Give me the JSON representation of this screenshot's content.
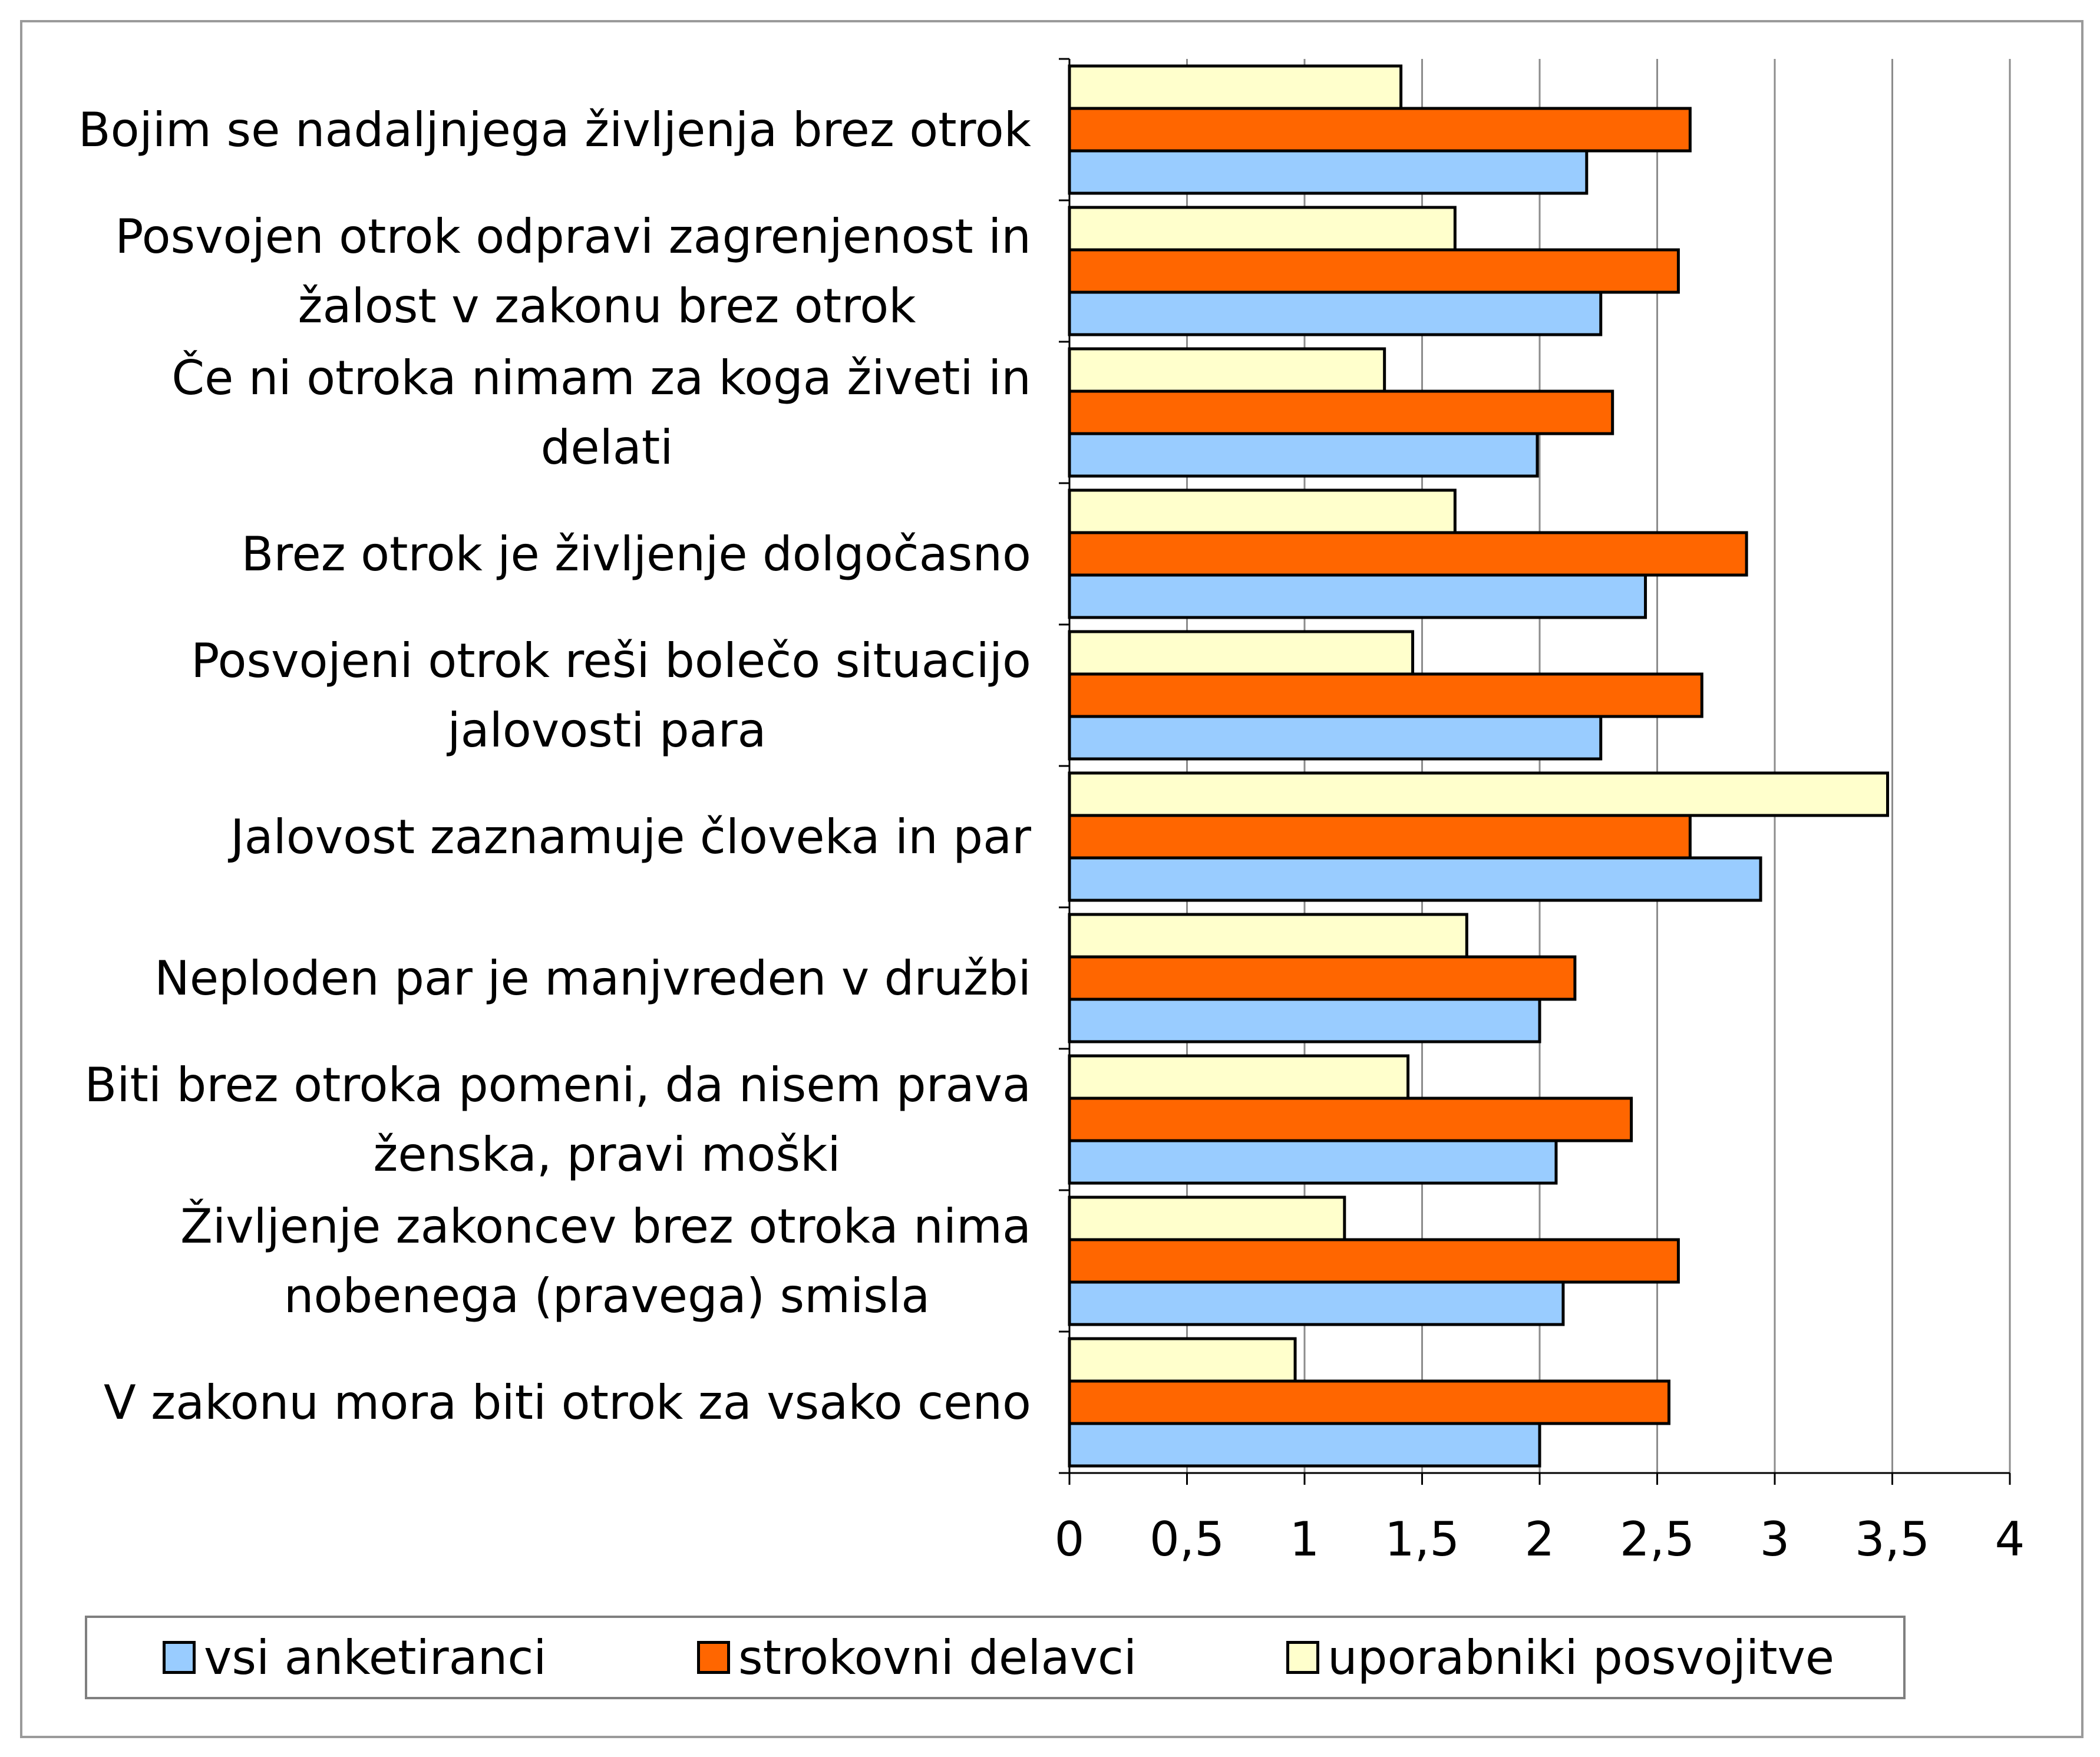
{
  "chart_data": {
    "type": "bar",
    "orientation": "horizontal",
    "categories": [
      [
        "Bojim se nadaljnjega življenja brez otrok"
      ],
      [
        "Posvojen otrok odpravi zagrenjenost in",
        "žalost v zakonu brez otrok"
      ],
      [
        "Če ni otroka nimam za koga živeti in",
        "delati"
      ],
      [
        "Brez otrok je življenje dolgočasno"
      ],
      [
        "Posvojeni otrok reši bolečo situacijo",
        "jalovosti para"
      ],
      [
        "Jalovost zaznamuje človeka in par"
      ],
      [
        "Neploden par je manjvreden v družbi"
      ],
      [
        "Biti brez otroka pomeni, da nisem prava",
        "ženska, pravi moški"
      ],
      [
        "Življenje zakoncev brez otroka nima",
        "nobenega (pravega) smisla"
      ],
      [
        "V zakonu mora biti otrok za vsako ceno"
      ]
    ],
    "series": [
      {
        "name": "vsi anketiranci",
        "color": "#99ccff",
        "values": [
          2.2,
          2.26,
          1.99,
          2.45,
          2.26,
          2.94,
          2.0,
          2.07,
          2.1,
          2.0
        ]
      },
      {
        "name": "strokovni delavci",
        "color": "#ff6600",
        "values": [
          2.64,
          2.59,
          2.31,
          2.88,
          2.69,
          2.64,
          2.15,
          2.39,
          2.59,
          2.55
        ]
      },
      {
        "name": "uporabniki posvojitve",
        "color": "#ffffcc",
        "values": [
          1.41,
          1.64,
          1.34,
          1.64,
          1.46,
          3.48,
          1.69,
          1.44,
          1.17,
          0.96
        ]
      }
    ],
    "xlim": [
      0,
      4
    ],
    "xticks": [
      "0",
      "0,5",
      "1",
      "1,5",
      "2",
      "2,5",
      "3",
      "3,5",
      "4"
    ],
    "grid": true,
    "legend_position": "bottom"
  }
}
